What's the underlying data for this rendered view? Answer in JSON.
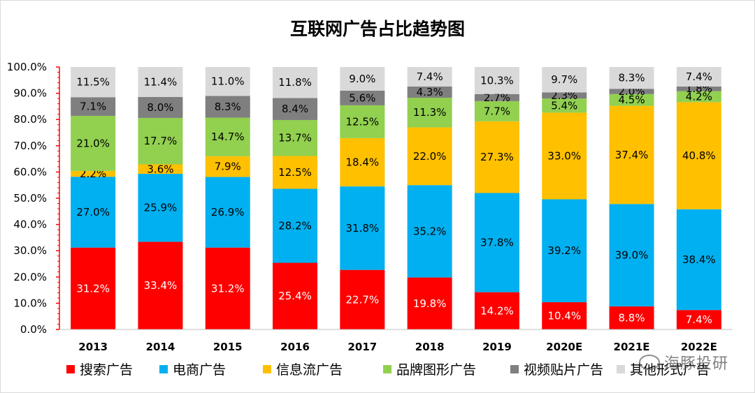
{
  "chart_data": {
    "type": "bar",
    "stacked": true,
    "title": "互联网广告占比趋势图",
    "xlabel": "",
    "ylabel": "",
    "ylim": [
      0,
      100
    ],
    "yticks": [
      "0.0%",
      "10.0%",
      "20.0%",
      "30.0%",
      "40.0%",
      "50.0%",
      "60.0%",
      "70.0%",
      "80.0%",
      "90.0%",
      "100.0%"
    ],
    "categories": [
      "2013",
      "2014",
      "2015",
      "2016",
      "2017",
      "2018",
      "2019",
      "2020E",
      "2021E",
      "2022E"
    ],
    "legend_position": "bottom",
    "series": [
      {
        "name": "搜索广告",
        "color": "#ff0000",
        "label_color": "#ffffff",
        "values": [
          31.2,
          33.4,
          31.2,
          25.4,
          22.7,
          19.8,
          14.2,
          10.4,
          8.8,
          7.4
        ],
        "labels": [
          "31.2%",
          "33.4%",
          "31.2%",
          "25.4%",
          "22.7%",
          "19.8%",
          "14.2%",
          "10.4%",
          "8.8%",
          "7.4%"
        ]
      },
      {
        "name": "电商广告",
        "color": "#00b0f0",
        "label_color": "#000000",
        "values": [
          27.0,
          25.9,
          26.9,
          28.2,
          31.8,
          35.2,
          37.8,
          39.2,
          39.0,
          38.4
        ],
        "labels": [
          "27.0%",
          "25.9%",
          "26.9%",
          "28.2%",
          "31.8%",
          "35.2%",
          "37.8%",
          "39.2%",
          "39.0%",
          "38.4%"
        ]
      },
      {
        "name": "信息流广告",
        "color": "#ffc000",
        "label_color": "#000000",
        "values": [
          2.2,
          3.6,
          7.9,
          12.5,
          18.4,
          22.0,
          27.3,
          33.0,
          37.4,
          40.8
        ],
        "labels": [
          "2.2%",
          "3.6%",
          "7.9%",
          "12.5%",
          "18.4%",
          "22.0%",
          "27.3%",
          "33.0%",
          "37.4%",
          "40.8%"
        ]
      },
      {
        "name": "品牌图形广告",
        "color": "#92d050",
        "label_color": "#000000",
        "values": [
          21.0,
          17.7,
          14.7,
          13.7,
          12.5,
          11.3,
          7.7,
          5.4,
          4.5,
          4.2
        ],
        "labels": [
          "21.0%",
          "17.7%",
          "14.7%",
          "13.7%",
          "12.5%",
          "11.3%",
          "7.7%",
          "5.4%",
          "4.5%",
          "4.2%"
        ]
      },
      {
        "name": "视频贴片广告",
        "color": "#7f7f7f",
        "label_color": "#000000",
        "values": [
          7.1,
          8.0,
          8.3,
          8.4,
          5.6,
          4.3,
          2.7,
          2.3,
          2.0,
          1.8
        ],
        "labels": [
          "7.1%",
          "8.0%",
          "8.3%",
          "8.4%",
          "5.6%",
          "4.3%",
          "2.7%",
          "2.3%",
          "2.0%",
          "1.8%"
        ]
      },
      {
        "name": "其他形式广告",
        "color": "#d9d9d9",
        "label_color": "#000000",
        "values": [
          11.5,
          11.4,
          11.0,
          11.8,
          9.0,
          7.4,
          10.3,
          9.7,
          8.3,
          7.4
        ],
        "labels": [
          "11.5%",
          "11.4%",
          "11.0%",
          "11.8%",
          "9.0%",
          "7.4%",
          "10.3%",
          "9.7%",
          "8.3%",
          "7.4%"
        ]
      }
    ]
  },
  "watermark": "海豚投研"
}
